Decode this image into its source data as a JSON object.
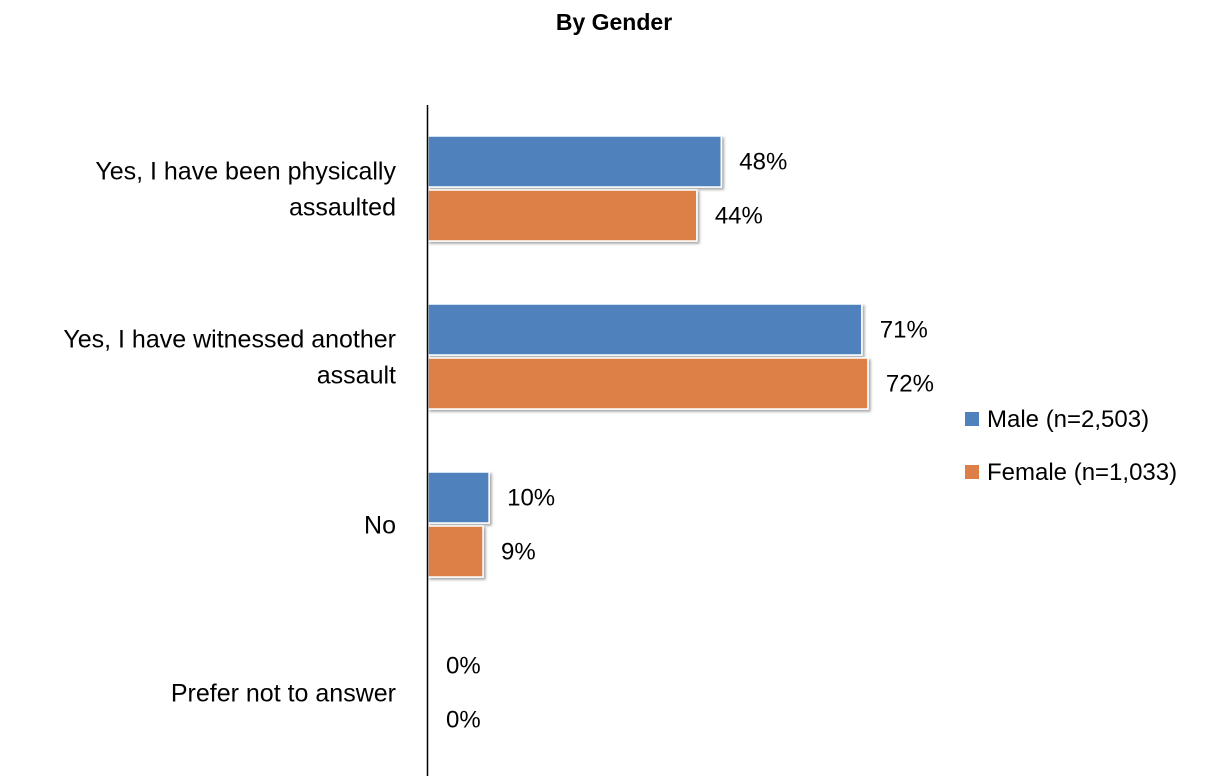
{
  "chart_data": {
    "type": "bar",
    "orientation": "horizontal",
    "title": "By Gender",
    "categories": [
      [
        "Yes, I have been physically",
        "assaulted"
      ],
      [
        "Yes, I have witnessed another",
        "assault"
      ],
      [
        "No"
      ],
      [
        "Prefer not to answer"
      ]
    ],
    "series": [
      {
        "name": "Male (n=2,503)",
        "color": "#4F81BD",
        "values": [
          48,
          71,
          10,
          0
        ],
        "labels": [
          "48%",
          "71%",
          "10%",
          "0%"
        ]
      },
      {
        "name": "Female (n=1,033)",
        "color": "#DD8047",
        "values": [
          44,
          72,
          9,
          0
        ],
        "labels": [
          "44%",
          "72%",
          "9%",
          "0%"
        ]
      }
    ],
    "value_unit": "%",
    "xlim": [
      0,
      100
    ],
    "grid": false,
    "legend_position": "right"
  }
}
